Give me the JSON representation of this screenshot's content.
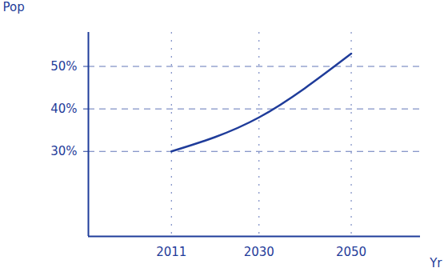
{
  "chart_data": {
    "type": "line",
    "x_label": "Yr",
    "y_label": "Pop",
    "x": [
      2011,
      2030,
      2050
    ],
    "values": [
      30,
      38,
      53
    ],
    "color": "#1f3c9a",
    "xlim": [
      1993,
      2065
    ],
    "xticks": [
      2011,
      2030,
      2050
    ],
    "ylim": [
      10,
      58
    ],
    "yticks": [
      {
        "value": 30,
        "label": "30%"
      },
      {
        "value": 40,
        "label": "40%"
      },
      {
        "value": 50,
        "label": "50%"
      }
    ],
    "grid": true
  }
}
